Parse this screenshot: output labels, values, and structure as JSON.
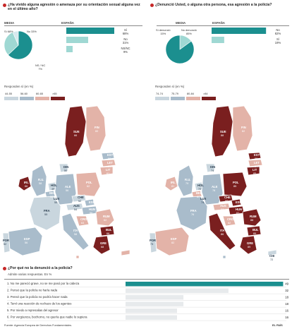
{
  "panel_left": {
    "title": "¿Ha vivido alguna agresión o amenaza por su orientación sexual alguna vez en el último año?",
    "media_label": "MEDIA",
    "spain_label": "ESPAÑA",
    "pie_labels": [
      {
        "key": "Sí",
        "value": "68%"
      },
      {
        "key": "No",
        "value": "33%"
      },
      {
        "key": "NS / NC",
        "value": "7%"
      }
    ],
    "legend_title": "Responden sí (en %)",
    "legend": [
      "44-55",
      "56-60",
      "60-65",
      ">65"
    ]
  },
  "panel_right": {
    "title": "¿Denunció Usted, o alguna otra persona, esa agresión a la policía?",
    "media_label": "MEDIA",
    "spain_label": "ESPAÑA",
    "pie_labels": [
      {
        "key": "Sí denunció",
        "value": "15%"
      },
      {
        "key": "No denunció",
        "value": "85%"
      }
    ],
    "legend_title": "Responden sí (en %)",
    "legend": [
      "74-74",
      "75-79",
      "80-84",
      ">84"
    ]
  },
  "bottom": {
    "title": "¿Por qué no la denunció a la policía?",
    "subtitle": "Admite varias respuestas. En %"
  },
  "source": "Fuente: Agencia Europea de Derechos Fundamentales.",
  "brand": "EL PAÍS",
  "colors": {
    "teal": "#1b8f8f",
    "light_teal": "#9fd8d3",
    "pale_blue": "#c9d6de",
    "map_blue": "#a9bccb",
    "salmon": "#e3b3a8",
    "dark_red": "#7a1f1f",
    "accent": "#c62828"
  },
  "chart_data": [
    {
      "type": "pie",
      "title": "MEDIA",
      "slices": [
        {
          "label": "Sí",
          "value": 68
        },
        {
          "label": "No",
          "value": 33
        },
        {
          "label": "NS / NC",
          "value": 7
        }
      ]
    },
    {
      "type": "bar",
      "title": "ESPAÑA",
      "categories": [
        "Sí",
        "No",
        "NS/NC"
      ],
      "values": [
        68,
        31,
        9
      ]
    },
    {
      "type": "pie",
      "title": "MEDIA",
      "slices": [
        {
          "label": "Sí denunció",
          "value": 15
        },
        {
          "label": "No denunció",
          "value": 85
        }
      ]
    },
    {
      "type": "bar",
      "title": "ESPAÑA",
      "categories": [
        "No",
        "Sí"
      ],
      "values": [
        82,
        19
      ]
    },
    {
      "type": "bar",
      "title": "¿Por qué no la denunció a la policía?",
      "categories": [
        "1. No me pareció grave, no se me pasó por la cabeza",
        "2. Pensé que la policía no haría nada",
        "3. Pensé que la policía no podría hacer nada",
        "4. Temí una reacción de rechazo de los agentes",
        "5. Por miedo a represalias del agresor",
        "6. Por vergüenza, bochorno, no quería que nadie lo supiera"
      ],
      "values": [
        49,
        32,
        18,
        18,
        16,
        16
      ],
      "xlim": [
        0,
        50
      ]
    },
    {
      "type": "map",
      "title": "Responden sí (en %)",
      "regions": [
        {
          "label": "SUE",
          "value": 66
        },
        {
          "label": "FIN",
          "value": 60
        },
        {
          "label": "EST",
          "value": 58
        },
        {
          "label": "LET",
          "value": 64
        },
        {
          "label": "LIT",
          "value": 61
        },
        {
          "label": "IRL",
          "value": 66
        },
        {
          "label": "R.U.",
          "value": 58
        },
        {
          "label": "DIN",
          "value": 50
        },
        {
          "label": "HOL",
          "value": 49
        },
        {
          "label": "BEL",
          "value": 58
        },
        {
          "label": "LUX",
          "value": 55
        },
        {
          "label": "ALE",
          "value": 56
        },
        {
          "label": "POL",
          "value": 62
        },
        {
          "label": "CHE",
          "value": 52
        },
        {
          "label": "AUS",
          "value": 54
        },
        {
          "label": "ESL",
          "value": 57
        },
        {
          "label": "HUN",
          "value": 56
        },
        {
          "label": "FRA",
          "value": 55
        },
        {
          "label": "ESP",
          "value": 56
        },
        {
          "label": "POR",
          "value": 52
        },
        {
          "label": "ITA",
          "value": 58
        },
        {
          "label": "CRO",
          "value": 63
        },
        {
          "label": "RUM",
          "value": 62
        },
        {
          "label": "BUL",
          "value": 66
        },
        {
          "label": "GRE",
          "value": 68
        },
        {
          "label": "MAL",
          "value": 60
        },
        {
          "label": "CHI",
          "value": 61
        }
      ]
    },
    {
      "type": "map",
      "title": "Responden sí (en %)",
      "regions": [
        {
          "label": "SUE",
          "value": 88
        },
        {
          "label": "FIN",
          "value": 82
        },
        {
          "label": "EST",
          "value": 86
        },
        {
          "label": "LET",
          "value": 84
        },
        {
          "label": "LIT",
          "value": 85
        },
        {
          "label": "IRL",
          "value": 81
        },
        {
          "label": "R.U.",
          "value": 79
        },
        {
          "label": "DIN",
          "value": 74
        },
        {
          "label": "HOL",
          "value": 72
        },
        {
          "label": "BEL",
          "value": 80
        },
        {
          "label": "LUX",
          "value": 74
        },
        {
          "label": "ALE",
          "value": 78
        },
        {
          "label": "POL",
          "value": 85
        },
        {
          "label": "CHE",
          "value": 89
        },
        {
          "label": "AUS",
          "value": 84
        },
        {
          "label": "ESL",
          "value": 89
        },
        {
          "label": "HUN",
          "value": 87
        },
        {
          "label": "FRA",
          "value": 76
        },
        {
          "label": "ESP",
          "value": 82
        },
        {
          "label": "POR",
          "value": 73
        },
        {
          "label": "ITA",
          "value": 86
        },
        {
          "label": "CRO",
          "value": 82
        },
        {
          "label": "RUM",
          "value": 88
        },
        {
          "label": "BUL",
          "value": 89
        },
        {
          "label": "GRE",
          "value": 89
        },
        {
          "label": "MAL",
          "value": 75
        },
        {
          "label": "CHI",
          "value": 72
        }
      ]
    }
  ]
}
